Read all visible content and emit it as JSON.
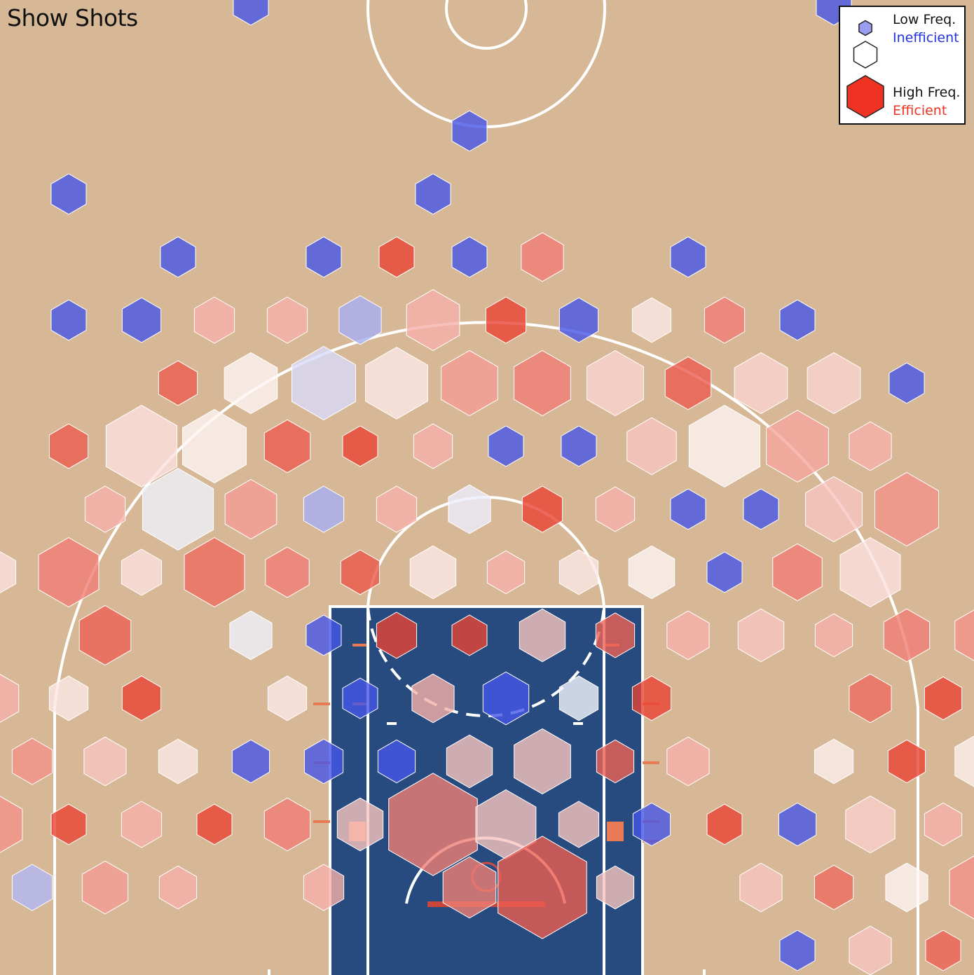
{
  "header": {
    "show_shots_label": "Show Shots"
  },
  "legend": {
    "low_freq": "Low Freq.",
    "inefficient": "Inefficient",
    "high_freq": "High Freq.",
    "efficient": "Efficient",
    "inefficient_color": "#2233dd",
    "efficient_color": "#ee3322"
  },
  "colors": {
    "court": "#d6b896",
    "paint": "#274a7f",
    "lines": "#ffffff",
    "scale_low": "#3c4de6",
    "scale_mid": "#ffffff",
    "scale_high": "#e8392a"
  },
  "chart_data": {
    "type": "hexbin",
    "size_encodes": "shot frequency",
    "color_encodes": "shot efficiency (-1 inefficient to +1 efficient)",
    "bins": [
      {
        "col": 3,
        "row": 0,
        "freq": 0.1,
        "eff": -0.95
      },
      {
        "col": 11,
        "row": 0,
        "freq": 0.1,
        "eff": -0.95
      },
      {
        "col": 6,
        "row": 2,
        "freq": 0.1,
        "eff": -0.95
      },
      {
        "col": 1,
        "row": 3,
        "freq": 0.1,
        "eff": -0.95
      },
      {
        "col": 6,
        "row": 3,
        "freq": 0.1,
        "eff": -0.95
      },
      {
        "col": 2,
        "row": 4,
        "freq": 0.1,
        "eff": -0.95
      },
      {
        "col": 4,
        "row": 4,
        "freq": 0.1,
        "eff": -0.95
      },
      {
        "col": 5,
        "row": 4,
        "freq": 0.1,
        "eff": 0.95
      },
      {
        "col": 6,
        "row": 4,
        "freq": 0.1,
        "eff": -0.95
      },
      {
        "col": 7,
        "row": 4,
        "freq": 0.2,
        "eff": 0.65
      },
      {
        "col": 9,
        "row": 4,
        "freq": 0.1,
        "eff": -0.95
      },
      {
        "col": 1,
        "row": 5,
        "freq": 0.1,
        "eff": -0.95
      },
      {
        "col": 2,
        "row": 5,
        "freq": 0.15,
        "eff": -0.95
      },
      {
        "col": 3,
        "row": 5,
        "freq": 0.17,
        "eff": 0.4
      },
      {
        "col": 4,
        "row": 5,
        "freq": 0.17,
        "eff": 0.4
      },
      {
        "col": 5,
        "row": 5,
        "freq": 0.2,
        "eff": -0.45
      },
      {
        "col": 6,
        "row": 5,
        "freq": 0.35,
        "eff": 0.4
      },
      {
        "col": 7,
        "row": 5,
        "freq": 0.17,
        "eff": 0.95
      },
      {
        "col": 8,
        "row": 5,
        "freq": 0.15,
        "eff": -0.95
      },
      {
        "col": 9,
        "row": 5,
        "freq": 0.15,
        "eff": 0.12
      },
      {
        "col": 10,
        "row": 5,
        "freq": 0.17,
        "eff": 0.65
      },
      {
        "col": 11,
        "row": 5,
        "freq": 0.1,
        "eff": -0.95
      },
      {
        "col": 2,
        "row": 6,
        "freq": 0.15,
        "eff": 0.82
      },
      {
        "col": 3,
        "row": 6,
        "freq": 0.35,
        "eff": 0.05
      },
      {
        "col": 4,
        "row": 6,
        "freq": 0.5,
        "eff": -0.2
      },
      {
        "col": 5,
        "row": 6,
        "freq": 0.48,
        "eff": 0.12
      },
      {
        "col": 6,
        "row": 6,
        "freq": 0.4,
        "eff": 0.5
      },
      {
        "col": 7,
        "row": 6,
        "freq": 0.4,
        "eff": 0.65
      },
      {
        "col": 8,
        "row": 6,
        "freq": 0.4,
        "eff": 0.22
      },
      {
        "col": 9,
        "row": 6,
        "freq": 0.25,
        "eff": 0.82
      },
      {
        "col": 10,
        "row": 6,
        "freq": 0.35,
        "eff": 0.22
      },
      {
        "col": 11,
        "row": 6,
        "freq": 0.35,
        "eff": 0.22
      },
      {
        "col": 12,
        "row": 6,
        "freq": 0.1,
        "eff": -0.95
      },
      {
        "col": 1,
        "row": 7,
        "freq": 0.15,
        "eff": 0.82
      },
      {
        "col": 2,
        "row": 7,
        "freq": 0.6,
        "eff": 0.15
      },
      {
        "col": 3,
        "row": 7,
        "freq": 0.5,
        "eff": 0.05
      },
      {
        "col": 4,
        "row": 7,
        "freq": 0.25,
        "eff": 0.82
      },
      {
        "col": 5,
        "row": 7,
        "freq": 0.1,
        "eff": 0.95
      },
      {
        "col": 6,
        "row": 7,
        "freq": 0.15,
        "eff": 0.4
      },
      {
        "col": 7,
        "row": 7,
        "freq": 0.1,
        "eff": -0.95
      },
      {
        "col": 8,
        "row": 7,
        "freq": 0.1,
        "eff": -0.95
      },
      {
        "col": 9,
        "row": 7,
        "freq": 0.3,
        "eff": 0.3
      },
      {
        "col": 10,
        "row": 7,
        "freq": 0.6,
        "eff": 0.05
      },
      {
        "col": 11,
        "row": 7,
        "freq": 0.48,
        "eff": 0.45
      },
      {
        "col": 12,
        "row": 7,
        "freq": 0.2,
        "eff": 0.4
      },
      {
        "col": 1,
        "row": 8,
        "freq": 0.17,
        "eff": 0.4
      },
      {
        "col": 2,
        "row": 8,
        "freq": 0.6,
        "eff": -0.08
      },
      {
        "col": 3,
        "row": 8,
        "freq": 0.33,
        "eff": 0.5
      },
      {
        "col": 4,
        "row": 8,
        "freq": 0.17,
        "eff": -0.45
      },
      {
        "col": 5,
        "row": 8,
        "freq": 0.17,
        "eff": 0.4
      },
      {
        "col": 6,
        "row": 8,
        "freq": 0.2,
        "eff": -0.1
      },
      {
        "col": 7,
        "row": 8,
        "freq": 0.17,
        "eff": 0.95
      },
      {
        "col": 8,
        "row": 8,
        "freq": 0.15,
        "eff": 0.4
      },
      {
        "col": 9,
        "row": 8,
        "freq": 0.1,
        "eff": -0.95
      },
      {
        "col": 10,
        "row": 8,
        "freq": 0.1,
        "eff": -0.95
      },
      {
        "col": 11,
        "row": 8,
        "freq": 0.4,
        "eff": 0.3
      },
      {
        "col": 12,
        "row": 8,
        "freq": 0.5,
        "eff": 0.55
      },
      {
        "col": 0,
        "row": 9,
        "freq": 0.17,
        "eff": 0.15
      },
      {
        "col": 1,
        "row": 9,
        "freq": 0.45,
        "eff": 0.65
      },
      {
        "col": 2,
        "row": 9,
        "freq": 0.17,
        "eff": 0.15
      },
      {
        "col": 3,
        "row": 9,
        "freq": 0.45,
        "eff": 0.75
      },
      {
        "col": 4,
        "row": 9,
        "freq": 0.22,
        "eff": 0.65
      },
      {
        "col": 5,
        "row": 9,
        "freq": 0.15,
        "eff": 0.85
      },
      {
        "col": 6,
        "row": 9,
        "freq": 0.25,
        "eff": 0.12
      },
      {
        "col": 7,
        "row": 9,
        "freq": 0.13,
        "eff": 0.4
      },
      {
        "col": 8,
        "row": 9,
        "freq": 0.15,
        "eff": 0.12
      },
      {
        "col": 9,
        "row": 9,
        "freq": 0.25,
        "eff": 0.05
      },
      {
        "col": 10,
        "row": 9,
        "freq": 0.1,
        "eff": -0.95
      },
      {
        "col": 11,
        "row": 9,
        "freq": 0.3,
        "eff": 0.65
      },
      {
        "col": 12,
        "row": 9,
        "freq": 0.45,
        "eff": 0.15
      },
      {
        "col": 1,
        "row": 10,
        "freq": 0.33,
        "eff": 0.8
      },
      {
        "col": 3,
        "row": 10,
        "freq": 0.2,
        "eff": -0.08
      },
      {
        "col": 4,
        "row": 10,
        "freq": 0.1,
        "eff": -0.95
      },
      {
        "col": 5,
        "row": 10,
        "freq": 0.17,
        "eff": 0.95
      },
      {
        "col": 6,
        "row": 10,
        "freq": 0.1,
        "eff": 0.95
      },
      {
        "col": 7,
        "row": 10,
        "freq": 0.25,
        "eff": 0.3
      },
      {
        "col": 8,
        "row": 10,
        "freq": 0.15,
        "eff": 0.8
      },
      {
        "col": 9,
        "row": 10,
        "freq": 0.2,
        "eff": 0.4
      },
      {
        "col": 10,
        "row": 10,
        "freq": 0.25,
        "eff": 0.3
      },
      {
        "col": 11,
        "row": 10,
        "freq": 0.13,
        "eff": 0.4
      },
      {
        "col": 12,
        "row": 10,
        "freq": 0.25,
        "eff": 0.65
      },
      {
        "col": 13,
        "row": 10,
        "freq": 0.3,
        "eff": 0.55
      },
      {
        "col": 0,
        "row": 11,
        "freq": 0.25,
        "eff": 0.4
      },
      {
        "col": 1,
        "row": 11,
        "freq": 0.15,
        "eff": 0.12
      },
      {
        "col": 2,
        "row": 11,
        "freq": 0.15,
        "eff": 0.95
      },
      {
        "col": 4,
        "row": 11,
        "freq": 0.15,
        "eff": 0.12
      },
      {
        "col": 5,
        "row": 11,
        "freq": 0.1,
        "eff": -0.95
      },
      {
        "col": 6,
        "row": 11,
        "freq": 0.2,
        "eff": 0.4
      },
      {
        "col": 7,
        "row": 11,
        "freq": 0.25,
        "eff": -0.95
      },
      {
        "col": 8,
        "row": 11,
        "freq": 0.15,
        "eff": -0.05
      },
      {
        "col": 9,
        "row": 11,
        "freq": 0.15,
        "eff": 0.95
      },
      {
        "col": 12,
        "row": 11,
        "freq": 0.2,
        "eff": 0.75
      },
      {
        "col": 13,
        "row": 11,
        "freq": 0.13,
        "eff": 0.95
      },
      {
        "col": 0,
        "row": 12,
        "freq": 0.17,
        "eff": 0.55
      },
      {
        "col": 1,
        "row": 12,
        "freq": 0.2,
        "eff": 0.3
      },
      {
        "col": 2,
        "row": 12,
        "freq": 0.15,
        "eff": 0.12
      },
      {
        "col": 3,
        "row": 12,
        "freq": 0.13,
        "eff": -0.95
      },
      {
        "col": 4,
        "row": 12,
        "freq": 0.15,
        "eff": -0.95
      },
      {
        "col": 5,
        "row": 12,
        "freq": 0.13,
        "eff": -0.95
      },
      {
        "col": 6,
        "row": 12,
        "freq": 0.25,
        "eff": 0.3
      },
      {
        "col": 7,
        "row": 12,
        "freq": 0.4,
        "eff": 0.3
      },
      {
        "col": 8,
        "row": 12,
        "freq": 0.13,
        "eff": 0.8
      },
      {
        "col": 9,
        "row": 12,
        "freq": 0.2,
        "eff": 0.4
      },
      {
        "col": 11,
        "row": 12,
        "freq": 0.15,
        "eff": 0.08
      },
      {
        "col": 12,
        "row": 12,
        "freq": 0.13,
        "eff": 0.95
      },
      {
        "col": 13,
        "row": 12,
        "freq": 0.3,
        "eff": 0.08
      },
      {
        "col": 0,
        "row": 13,
        "freq": 0.35,
        "eff": 0.55
      },
      {
        "col": 1,
        "row": 13,
        "freq": 0.1,
        "eff": 0.95
      },
      {
        "col": 2,
        "row": 13,
        "freq": 0.17,
        "eff": 0.4
      },
      {
        "col": 3,
        "row": 13,
        "freq": 0.1,
        "eff": 0.95
      },
      {
        "col": 4,
        "row": 13,
        "freq": 0.25,
        "eff": 0.65
      },
      {
        "col": 5,
        "row": 13,
        "freq": 0.25,
        "eff": 0.3
      },
      {
        "col": 6,
        "row": 13,
        "freq": 0.85,
        "eff": 0.65
      },
      {
        "col": 7,
        "row": 13,
        "freq": 0.45,
        "eff": 0.3
      },
      {
        "col": 8,
        "row": 13,
        "freq": 0.17,
        "eff": 0.3
      },
      {
        "col": 9,
        "row": 13,
        "freq": 0.13,
        "eff": -0.95
      },
      {
        "col": 10,
        "row": 13,
        "freq": 0.1,
        "eff": 0.95
      },
      {
        "col": 11,
        "row": 13,
        "freq": 0.13,
        "eff": -0.95
      },
      {
        "col": 12,
        "row": 13,
        "freq": 0.3,
        "eff": 0.25
      },
      {
        "col": 13,
        "row": 13,
        "freq": 0.13,
        "eff": 0.4
      },
      {
        "col": 0,
        "row": 14,
        "freq": 0.17,
        "eff": -0.4
      },
      {
        "col": 1,
        "row": 14,
        "freq": 0.25,
        "eff": 0.5
      },
      {
        "col": 2,
        "row": 14,
        "freq": 0.13,
        "eff": 0.4
      },
      {
        "col": 4,
        "row": 14,
        "freq": 0.17,
        "eff": 0.4
      },
      {
        "col": 6,
        "row": 14,
        "freq": 0.35,
        "eff": 0.65
      },
      {
        "col": 7,
        "row": 14,
        "freq": 0.85,
        "eff": 0.82
      },
      {
        "col": 8,
        "row": 14,
        "freq": 0.13,
        "eff": 0.3
      },
      {
        "col": 10,
        "row": 14,
        "freq": 0.2,
        "eff": 0.3
      },
      {
        "col": 11,
        "row": 14,
        "freq": 0.15,
        "eff": 0.75
      },
      {
        "col": 12,
        "row": 14,
        "freq": 0.2,
        "eff": 0.05
      },
      {
        "col": 13,
        "row": 14,
        "freq": 0.45,
        "eff": 0.55
      },
      {
        "col": 11,
        "row": 15,
        "freq": 0.1,
        "eff": -0.95
      },
      {
        "col": 12,
        "row": 15,
        "freq": 0.2,
        "eff": 0.3
      },
      {
        "col": 13,
        "row": 15,
        "freq": 0.1,
        "eff": 0.8
      }
    ]
  }
}
